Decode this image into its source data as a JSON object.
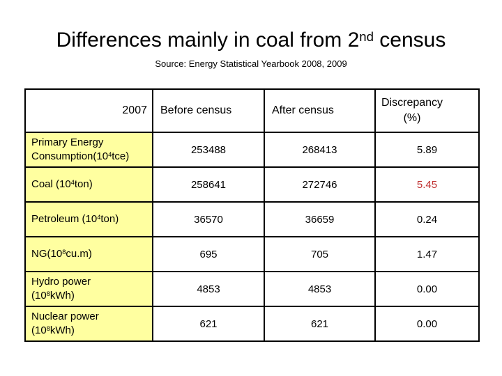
{
  "title": {
    "pre": "Differences mainly in coal from 2",
    "sup": "nd",
    "post": " census"
  },
  "source": "Source: Energy Statistical Yearbook 2008, 2009",
  "table": {
    "header": {
      "year": "2007",
      "before": "Before census",
      "after": "After census",
      "discrepancy_line1": "Discrepancy",
      "discrepancy_line2": "(%)"
    },
    "rows": [
      {
        "label": {
          "pre": "Primary Energy\nConsumption(10",
          "sup": "4",
          "post": "tce)"
        },
        "before": "253488",
        "after": "268413",
        "discrepancy": "5.89",
        "highlight": false
      },
      {
        "label": {
          "pre": "Coal (10",
          "sup": "4",
          "post": "ton)"
        },
        "before": "258641",
        "after": "272746",
        "discrepancy": "5.45",
        "highlight": true
      },
      {
        "label": {
          "pre": "Petroleum (10",
          "sup": "4",
          "post": "ton)"
        },
        "before": "36570",
        "after": "36659",
        "discrepancy": "0.24",
        "highlight": false
      },
      {
        "label": {
          "pre": "NG(10",
          "sup": "8",
          "post": "cu.m)"
        },
        "before": "695",
        "after": "705",
        "discrepancy": "1.47",
        "highlight": false
      },
      {
        "label": {
          "pre": "Hydro power\n(10",
          "sup": "8",
          "post": "kWh)"
        },
        "before": "4853",
        "after": "4853",
        "discrepancy": "0.00",
        "highlight": false
      },
      {
        "label": {
          "pre": "Nuclear power\n(10",
          "sup": "8",
          "post": "kWh)"
        },
        "before": "621",
        "after": "621",
        "discrepancy": "0.00",
        "highlight": false
      }
    ]
  },
  "colors": {
    "label_bg": "#FFFFA0",
    "accent_red": "#C03030",
    "border": "#000000"
  }
}
